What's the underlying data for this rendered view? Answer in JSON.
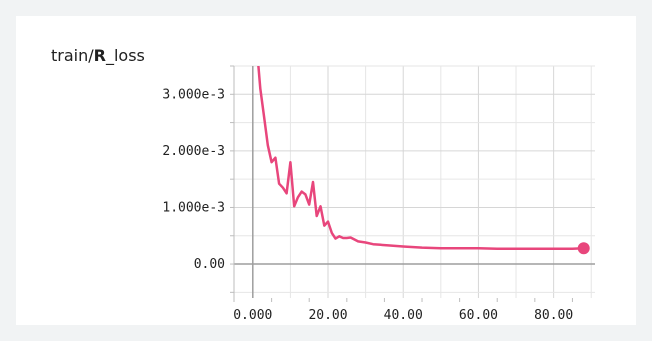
{
  "chart_data": {
    "type": "line",
    "title": "train/R_loss",
    "title_parts": {
      "prefix": "train/",
      "bold": "R",
      "suffix": "_loss"
    },
    "xlabel": "",
    "ylabel": "",
    "xlim": [
      -5,
      91
    ],
    "ylim": [
      -0.0006,
      0.0035
    ],
    "x_ticks": [
      0,
      20,
      40,
      60,
      80
    ],
    "x_tick_labels": [
      "0.000",
      "20.00",
      "40.00",
      "60.00",
      "80.00"
    ],
    "y_ticks": [
      0,
      0.001,
      0.002,
      0.003
    ],
    "y_tick_labels": [
      "0.00",
      "1.000e-3",
      "2.000e-3",
      "3.000e-3"
    ],
    "grid": true,
    "series": [
      {
        "color": "#e8467c",
        "x": [
          1.5,
          2,
          3,
          4,
          5,
          6,
          7,
          8,
          9,
          10,
          11,
          12,
          13,
          14,
          15,
          16,
          17,
          18,
          19,
          20,
          21,
          22,
          23,
          24,
          25,
          26,
          28,
          30,
          32,
          34,
          36,
          40,
          45,
          50,
          55,
          60,
          65,
          70,
          75,
          80,
          85,
          88
        ],
        "y": [
          0.0035,
          0.0031,
          0.0026,
          0.0021,
          0.0018,
          0.00188,
          0.00142,
          0.00135,
          0.00125,
          0.0018,
          0.00102,
          0.00118,
          0.00128,
          0.00123,
          0.00105,
          0.00145,
          0.00085,
          0.00102,
          0.00068,
          0.00075,
          0.00055,
          0.00045,
          0.00049,
          0.00046,
          0.00046,
          0.00047,
          0.0004,
          0.00038,
          0.00035,
          0.00034,
          0.00033,
          0.00031,
          0.00029,
          0.00028,
          0.00028,
          0.00028,
          0.00027,
          0.00027,
          0.00027,
          0.00027,
          0.00027,
          0.00028
        ]
      }
    ]
  }
}
